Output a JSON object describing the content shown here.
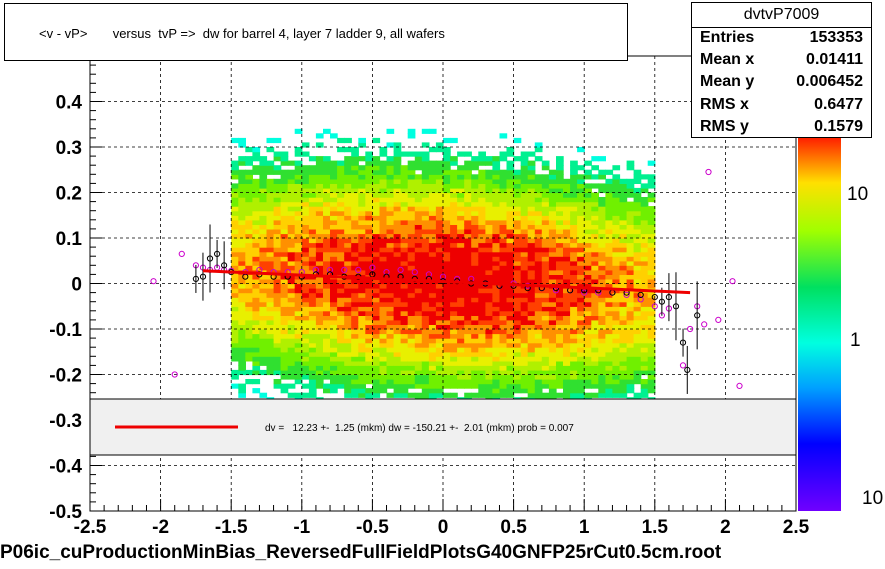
{
  "title": "<v - vP>       versus  tvP =>  dw for barrel 4, layer 7 ladder 9, all wafers",
  "stats": {
    "name": "dvtvP7009",
    "rows": [
      {
        "label": "Entries",
        "value": "153353"
      },
      {
        "label": "Mean x",
        "value": "0.01411"
      },
      {
        "label": "Mean y",
        "value": "0.006452"
      },
      {
        "label": "RMS x",
        "value": "0.6477"
      },
      {
        "label": "RMS y",
        "value": "0.1579"
      }
    ]
  },
  "fit_text": "dv =   12.23 +-  1.25 (mkm) dw = -150.21 +-  2.01 (mkm) prob = 0.007",
  "footer": "P06ic_cuProductionMinBias_ReversedFullFieldPlotsG40GNFP25rCut0.5cm.root",
  "colors": {
    "fit_line": "#ee0000",
    "profile_marker_a": "#cc00cc",
    "profile_marker_b": "#000000",
    "legend_fill": "#f0f0f0"
  },
  "chart_data": {
    "type": "heatmap",
    "xlim": [
      -2.5,
      2.5
    ],
    "ylim": [
      -0.5,
      0.5
    ],
    "x_ticks": [
      "-2.5",
      "-2",
      "-1.5",
      "-1",
      "-0.5",
      "0",
      "0.5",
      "1",
      "1.5",
      "2",
      "2.5"
    ],
    "y_ticks": [
      "-0.5",
      "-0.4",
      "-0.3",
      "-0.2",
      "-0.1",
      "0",
      "0.1",
      "0.2",
      "0.3",
      "0.4",
      "0.5"
    ],
    "y_ticks_shown": [
      "-0.5",
      "-0.4",
      "-0.3",
      "-0.2",
      "-0.1",
      "0",
      "0.1",
      "0.2",
      "0.3",
      "0.4"
    ],
    "grid": true,
    "colorbar": {
      "scale": "log",
      "labels": [
        "1",
        "10"
      ],
      "bottom_label": "10"
    },
    "density": {
      "x_range": [
        -1.5,
        1.5
      ],
      "core_center": [
        0.0,
        0.01
      ],
      "sigma_y": 0.16
    },
    "profile_series": [
      {
        "marker": "open-circle",
        "color": "magenta",
        "points": [
          [
            -2.05,
            0.005
          ],
          [
            -1.9,
            -0.2
          ],
          [
            -1.85,
            0.065
          ],
          [
            -1.75,
            0.04
          ],
          [
            -1.7,
            0.035
          ],
          [
            -1.65,
            0.03
          ],
          [
            -1.6,
            0.035
          ],
          [
            -1.55,
            0.03
          ],
          [
            -1.5,
            0.028
          ],
          [
            -1.4,
            0.025
          ],
          [
            -1.3,
            0.03
          ],
          [
            -1.2,
            0.025
          ],
          [
            -1.1,
            0.025
          ],
          [
            -1.0,
            0.025
          ],
          [
            -0.9,
            0.03
          ],
          [
            -0.8,
            0.03
          ],
          [
            -0.7,
            0.03
          ],
          [
            -0.6,
            0.03
          ],
          [
            -0.5,
            0.035
          ],
          [
            -0.4,
            0.025
          ],
          [
            -0.3,
            0.03
          ],
          [
            -0.2,
            0.025
          ],
          [
            -0.1,
            0.02
          ],
          [
            0.0,
            0.015
          ],
          [
            0.1,
            0.01
          ],
          [
            0.2,
            0.01
          ],
          [
            0.3,
            0.0
          ],
          [
            0.4,
            -0.005
          ],
          [
            0.5,
            0.0
          ],
          [
            0.6,
            -0.005
          ],
          [
            0.7,
            -0.01
          ],
          [
            0.8,
            -0.015
          ],
          [
            0.9,
            -0.015
          ],
          [
            1.0,
            -0.02
          ],
          [
            1.1,
            -0.02
          ],
          [
            1.2,
            -0.02
          ],
          [
            1.3,
            -0.025
          ],
          [
            1.4,
            -0.035
          ],
          [
            1.5,
            -0.05
          ],
          [
            1.55,
            -0.07
          ],
          [
            1.6,
            -0.055
          ],
          [
            1.7,
            -0.18
          ],
          [
            1.75,
            -0.1
          ],
          [
            1.8,
            -0.05
          ],
          [
            1.85,
            -0.09
          ],
          [
            1.88,
            0.245
          ],
          [
            1.95,
            -0.08
          ],
          [
            2.05,
            0.005
          ],
          [
            2.1,
            -0.225
          ]
        ]
      },
      {
        "marker": "open-circle",
        "color": "black",
        "points": [
          [
            -1.75,
            0.01
          ],
          [
            -1.7,
            0.015
          ],
          [
            -1.65,
            0.055
          ],
          [
            -1.6,
            0.065
          ],
          [
            -1.55,
            0.04
          ],
          [
            -1.5,
            0.025
          ],
          [
            -1.4,
            0.015
          ],
          [
            -1.3,
            0.02
          ],
          [
            -1.2,
            0.015
          ],
          [
            -1.1,
            0.015
          ],
          [
            -1.0,
            0.015
          ],
          [
            -0.9,
            0.02
          ],
          [
            -0.8,
            0.02
          ],
          [
            -0.7,
            0.015
          ],
          [
            -0.6,
            0.015
          ],
          [
            -0.5,
            0.02
          ],
          [
            -0.4,
            0.015
          ],
          [
            -0.3,
            0.015
          ],
          [
            -0.2,
            0.01
          ],
          [
            -0.1,
            0.01
          ],
          [
            0.0,
            0.005
          ],
          [
            0.1,
            0.005
          ],
          [
            0.2,
            0.0
          ],
          [
            0.3,
            0.0
          ],
          [
            0.4,
            -0.005
          ],
          [
            0.5,
            -0.005
          ],
          [
            0.6,
            -0.01
          ],
          [
            0.7,
            -0.01
          ],
          [
            0.8,
            -0.01
          ],
          [
            0.9,
            -0.015
          ],
          [
            1.0,
            -0.015
          ],
          [
            1.1,
            -0.015
          ],
          [
            1.2,
            -0.02
          ],
          [
            1.3,
            -0.02
          ],
          [
            1.4,
            -0.025
          ],
          [
            1.5,
            -0.03
          ],
          [
            1.55,
            -0.04
          ],
          [
            1.6,
            -0.03
          ],
          [
            1.65,
            -0.05
          ],
          [
            1.7,
            -0.13
          ],
          [
            1.73,
            -0.19
          ],
          [
            1.8,
            -0.07
          ]
        ]
      }
    ],
    "fit_line": {
      "x": [
        -1.7,
        1.75
      ],
      "y": [
        0.028,
        -0.02
      ]
    },
    "legend_box": {
      "text_ref": "fit_text"
    }
  }
}
